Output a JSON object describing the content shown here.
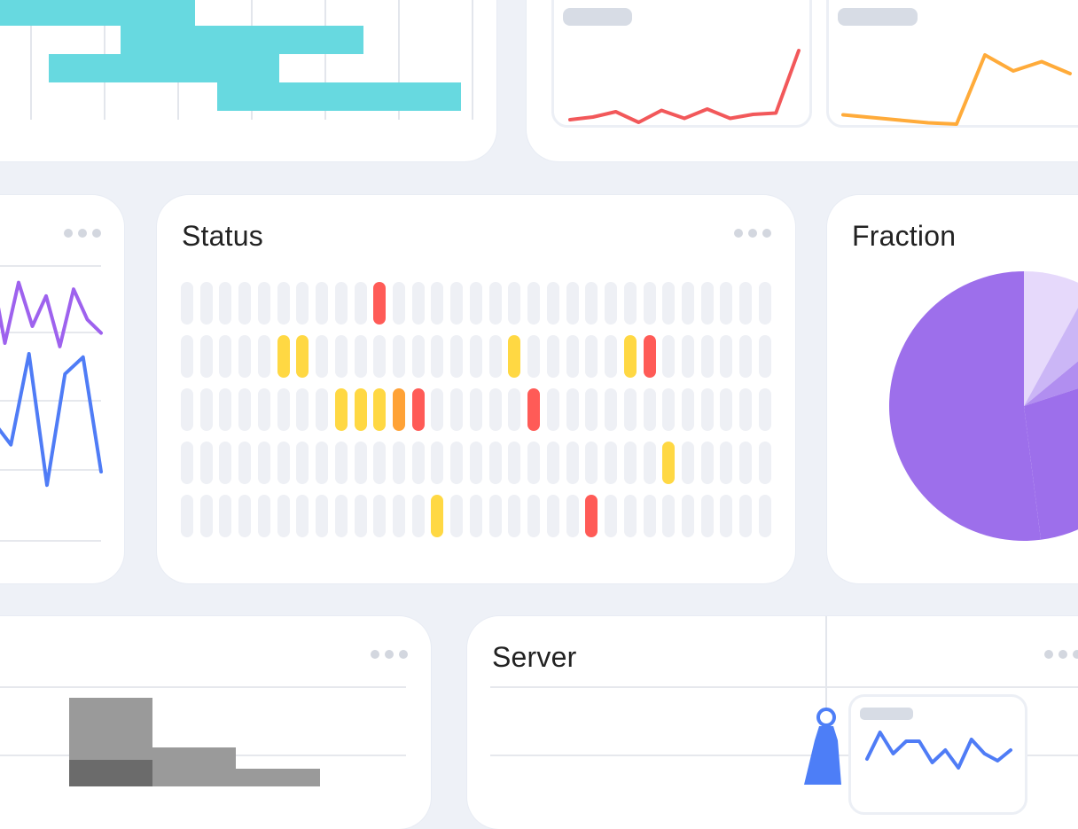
{
  "colors": {
    "background": "#eef1f7",
    "card": "#ffffff",
    "pill_empty": "#eef0f5",
    "status_ok": "#eef0f5",
    "status_warn": "#ffd843",
    "status_orange": "#ffa236",
    "status_critical": "#ff5b57",
    "gantt": "#67d9e0",
    "spark_red": "#f2585a",
    "spark_orange": "#ffab3a",
    "line_purple": "#9e62ee",
    "line_blue": "#4f7cf6",
    "pie": [
      "#e6d9fb",
      "#cbb6f6",
      "#b18ef0",
      "#9d6feb"
    ],
    "histogram_light": "#9a9a9a",
    "histogram_dark": "#6b6b6b",
    "pin_blue": "#4d7ef7"
  },
  "icons": {
    "menu": "more-horizontal-icon",
    "pin": "map-pin-icon"
  },
  "status_card": {
    "title": "Status",
    "rows": 5,
    "columns": 31,
    "highlights": [
      {
        "row": 0,
        "col": 10,
        "state": "critical"
      },
      {
        "row": 1,
        "col": 5,
        "state": "warn"
      },
      {
        "row": 1,
        "col": 6,
        "state": "warn"
      },
      {
        "row": 1,
        "col": 17,
        "state": "warn"
      },
      {
        "row": 1,
        "col": 23,
        "state": "warn"
      },
      {
        "row": 1,
        "col": 24,
        "state": "critical"
      },
      {
        "row": 2,
        "col": 8,
        "state": "warn"
      },
      {
        "row": 2,
        "col": 9,
        "state": "warn"
      },
      {
        "row": 2,
        "col": 10,
        "state": "warn"
      },
      {
        "row": 2,
        "col": 11,
        "state": "orange"
      },
      {
        "row": 2,
        "col": 12,
        "state": "critical"
      },
      {
        "row": 2,
        "col": 18,
        "state": "critical"
      },
      {
        "row": 3,
        "col": 25,
        "state": "warn"
      },
      {
        "row": 4,
        "col": 13,
        "state": "warn"
      },
      {
        "row": 4,
        "col": 21,
        "state": "critical"
      }
    ]
  },
  "fraction_card": {
    "title": "Fraction",
    "slices": [
      8,
      6,
      6,
      28,
      52
    ]
  },
  "server_card": {
    "title": "Server"
  },
  "sparkline_red": [
    0,
    0.1,
    0.3,
    -0.1,
    0.35,
    0.05,
    0.4,
    0.05,
    0.2,
    0.25,
    2.6
  ],
  "sparkline_orange": [
    0.45,
    0.35,
    0.25,
    0.15,
    0.1,
    2.7,
    2.1,
    2.45,
    2.0
  ],
  "line_purple": [
    3.2,
    1.0,
    2.8,
    1.5,
    2.4,
    0.9,
    2.6,
    1.7,
    1.3
  ],
  "line_blue": [
    2.5,
    1.8,
    4.5,
    0.6,
    3.9,
    4.4,
    1.0
  ],
  "mini_sparkline_blue": [
    1.0,
    2.5,
    1.3,
    2.0,
    2.0,
    0.8,
    1.5,
    0.5,
    2.1,
    1.3,
    0.9,
    1.5
  ]
}
